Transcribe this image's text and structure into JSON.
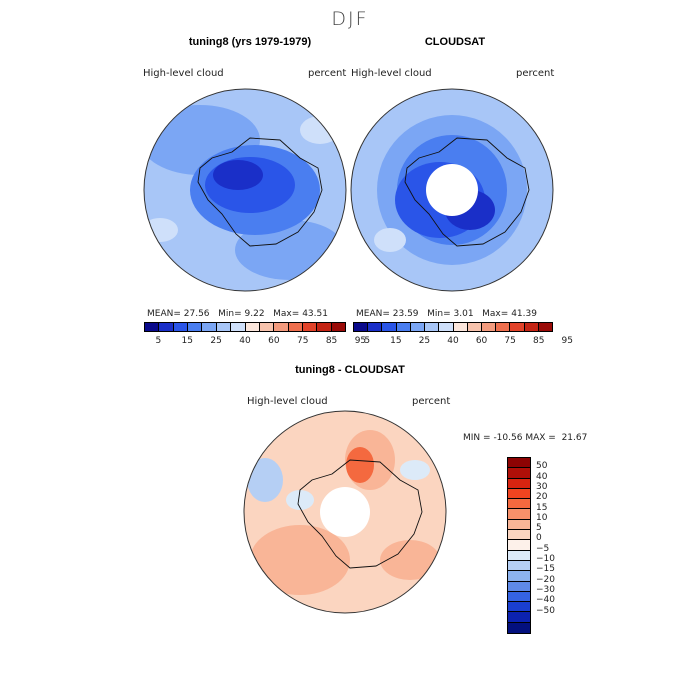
{
  "figure": {
    "season": "DJF"
  },
  "panel_model": {
    "title": "tuning8 (yrs 1979-1979)",
    "variable": "High-level  cloud",
    "units": "percent",
    "mean_label": "MEAN=",
    "mean": "27.56",
    "min_label": "Min=",
    "min": "9.22",
    "max_label": "Max=",
    "max": "43.51"
  },
  "panel_obs": {
    "title": "CLOUDSAT",
    "variable": "High-level  cloud",
    "units": "percent",
    "mean_label": "MEAN=",
    "mean": "23.59",
    "min_label": "Min=",
    "min": "3.01",
    "max_label": "Max=",
    "max": "41.39"
  },
  "panel_diff": {
    "title": "tuning8 - CLOUDSAT",
    "variable": "High-level  cloud",
    "units": "percent",
    "min_label": "MIN =",
    "min": "-10.56",
    "max_label": "MAX =",
    "max": "21.67"
  },
  "colorbar_abs": {
    "ticks": [
      "5",
      "15",
      "25",
      "40",
      "60",
      "75",
      "85",
      "95"
    ],
    "colors": [
      "#0a0a8c",
      "#1a2fc8",
      "#2a55e8",
      "#4a7ef0",
      "#7ba6f4",
      "#a8c6f7",
      "#cfe0fa",
      "#fbe6dc",
      "#f7c3ad",
      "#f39b7e",
      "#ee6f4e",
      "#e2432a",
      "#c42414",
      "#9a0b08"
    ]
  },
  "colorbar_diff": {
    "ticks": [
      "50",
      "40",
      "30",
      "20",
      "15",
      "10",
      "5",
      "0",
      "−5",
      "−10",
      "−15",
      "−20",
      "−30",
      "−40",
      "−50"
    ],
    "colors": [
      "#8c0303",
      "#b00f08",
      "#d82410",
      "#f04420",
      "#f4693f",
      "#f7906a",
      "#f9b597",
      "#fbd5c0",
      "#fdf1ea",
      "#dceaf8",
      "#b5cff4",
      "#8cb2ee",
      "#5f8ae8",
      "#3563e2",
      "#1a3fd0",
      "#0c22b0",
      "#03107e"
    ]
  },
  "chart_data": [
    {
      "type": "heatmap",
      "title": "tuning8 (yrs 1979-1979)",
      "variable": "High-level cloud",
      "units": "percent",
      "projection": "south-polar stereographic",
      "mean": 27.56,
      "min": 9.22,
      "max": 43.51,
      "levels": [
        5,
        15,
        25,
        40,
        60,
        75,
        85,
        95
      ]
    },
    {
      "type": "heatmap",
      "title": "CLOUDSAT",
      "variable": "High-level cloud",
      "units": "percent",
      "projection": "south-polar stereographic",
      "mean": 23.59,
      "min": 3.01,
      "max": 41.39,
      "levels": [
        5,
        15,
        25,
        40,
        60,
        75,
        85,
        95
      ]
    },
    {
      "type": "heatmap",
      "title": "tuning8 - CLOUDSAT",
      "variable": "High-level cloud",
      "units": "percent",
      "projection": "south-polar stereographic",
      "min": -10.56,
      "max": 21.67,
      "levels": [
        -50,
        -40,
        -30,
        -20,
        -15,
        -10,
        -5,
        0,
        5,
        10,
        15,
        20,
        30,
        40,
        50
      ]
    }
  ]
}
